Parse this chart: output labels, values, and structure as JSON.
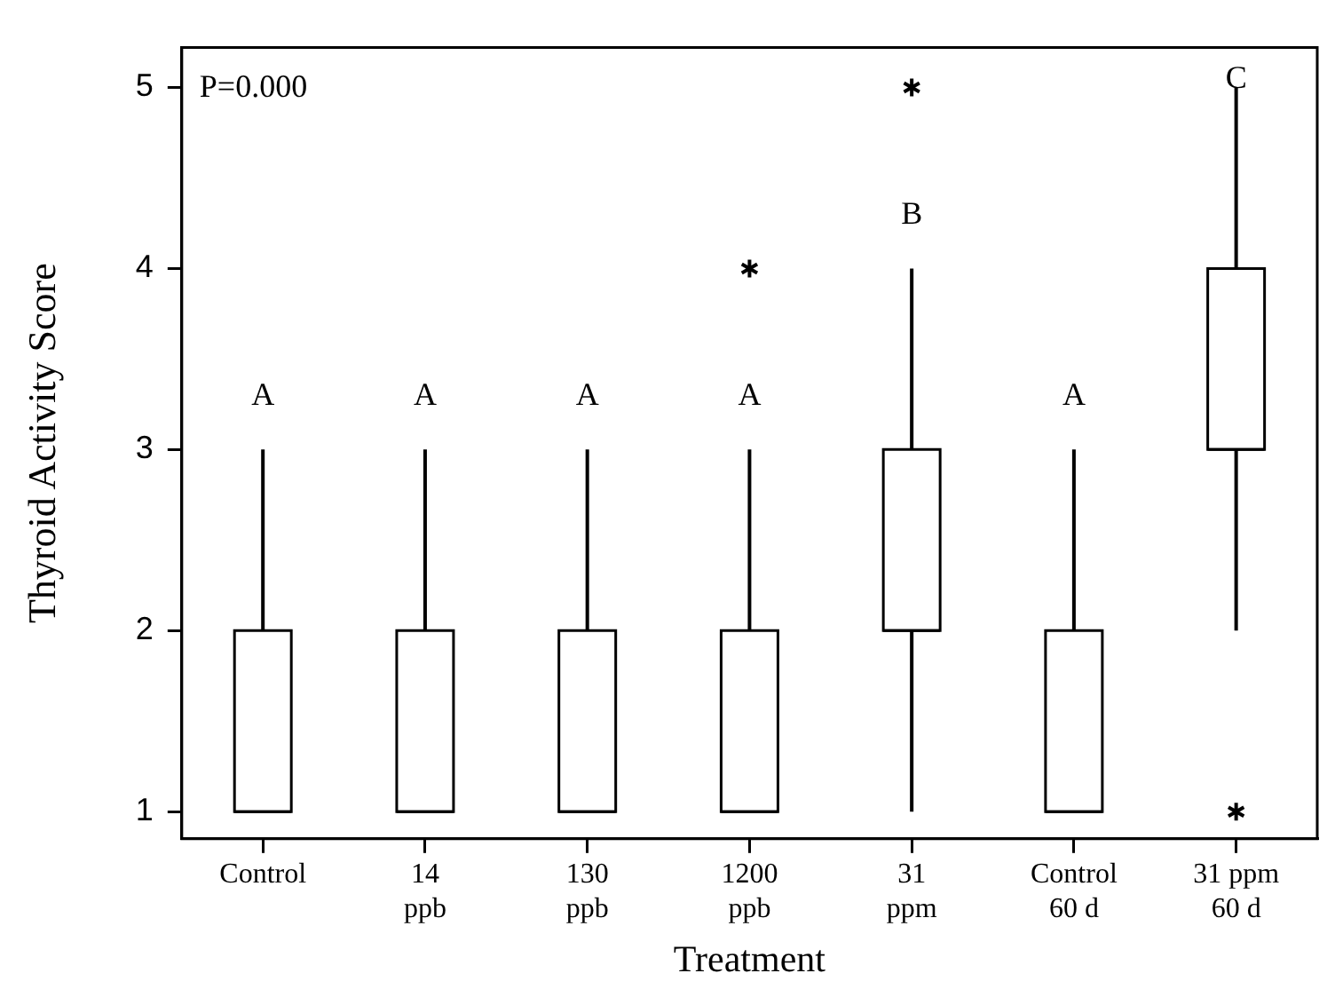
{
  "chart_data": {
    "type": "box",
    "xlabel": "Treatment",
    "ylabel": "Thyroid Activity Score",
    "categories": [
      "Control",
      "14\nppb",
      "130\nppb",
      "1200\nppb",
      "31\nppm",
      "Control\n60 d",
      "31 ppm\n60 d"
    ],
    "boxes": [
      {
        "low": 1,
        "q1": 1,
        "median": 1,
        "q3": 2,
        "high": 3
      },
      {
        "low": 1,
        "q1": 1,
        "median": 1,
        "q3": 2,
        "high": 3
      },
      {
        "low": 1,
        "q1": 1,
        "median": 1,
        "q3": 2,
        "high": 3
      },
      {
        "low": 1,
        "q1": 1,
        "median": 1,
        "q3": 2,
        "high": 3,
        "outliers": [
          4
        ]
      },
      {
        "low": 1,
        "q1": 2,
        "median": 2,
        "q3": 3,
        "high": 4,
        "outliers": [
          5
        ]
      },
      {
        "low": 1,
        "q1": 1,
        "median": 1,
        "q3": 2,
        "high": 3
      },
      {
        "low": 2,
        "q1": 3,
        "median": 3,
        "q3": 4,
        "high": 5,
        "outliers": [
          1
        ]
      }
    ],
    "color": "#000000",
    "ylim": [
      0.85,
      5.22
    ],
    "yticks": [
      1,
      2,
      3,
      4,
      5
    ],
    "grid": false,
    "annotations": [
      "P=0.000",
      "A",
      "A",
      "A",
      "A",
      "B",
      "A",
      "C"
    ]
  }
}
